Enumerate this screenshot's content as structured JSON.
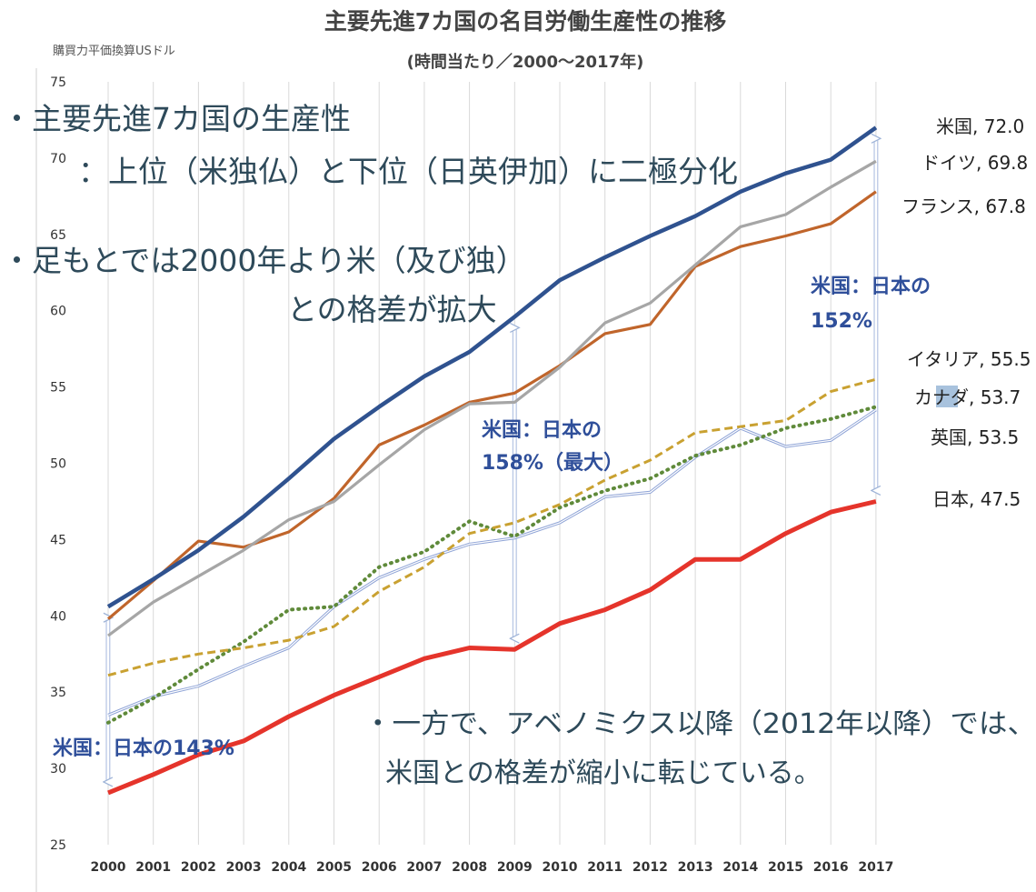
{
  "chart_data": {
    "type": "line",
    "title": "主要先進7カ国の名目労働生産性の推移",
    "subtitle": "(時間当たり／2000〜2017年)",
    "ylabel": "購買力平価換算USドル",
    "xlabel": "",
    "x": [
      "2000",
      "2001",
      "2002",
      "2003",
      "2004",
      "2005",
      "2006",
      "2007",
      "2008",
      "2009",
      "2010",
      "2011",
      "2012",
      "2013",
      "2014",
      "2015",
      "2016",
      "2017"
    ],
    "ylim": [
      25,
      75
    ],
    "yticks": [
      "25",
      "30",
      "35",
      "40",
      "45",
      "50",
      "55",
      "60",
      "65",
      "70",
      "75"
    ],
    "grid": "vertical",
    "series": [
      {
        "name": "米国",
        "end_label": "米国, 72.0",
        "color": "#2f528f",
        "style": "solid",
        "values": [
          40.6,
          42.4,
          44.3,
          46.5,
          49.0,
          51.6,
          53.7,
          55.7,
          57.3,
          59.6,
          62.0,
          63.5,
          64.9,
          66.2,
          67.8,
          69.0,
          69.9,
          72.0
        ]
      },
      {
        "name": "ドイツ",
        "end_label": "ドイツ, 69.8",
        "color": "#a6a6a6",
        "style": "solid",
        "values": [
          38.7,
          40.9,
          42.6,
          44.3,
          46.3,
          47.5,
          49.9,
          52.2,
          53.9,
          54.0,
          56.3,
          59.2,
          60.5,
          63.0,
          65.5,
          66.3,
          68.1,
          69.8
        ]
      },
      {
        "name": "フランス",
        "end_label": "フランス, 67.8",
        "color": "#c0652b",
        "style": "solid",
        "values": [
          39.8,
          42.3,
          44.9,
          44.5,
          45.5,
          47.7,
          51.2,
          52.5,
          54.0,
          54.6,
          56.4,
          58.5,
          59.1,
          62.9,
          64.2,
          64.9,
          65.7,
          67.8
        ]
      },
      {
        "name": "イタリア",
        "end_label": "イタリア, 55.5",
        "color": "#c9a131",
        "style": "dashed",
        "values": [
          36.1,
          36.9,
          37.5,
          37.9,
          38.4,
          39.3,
          41.6,
          43.2,
          45.4,
          46.1,
          47.3,
          48.9,
          50.2,
          52.0,
          52.4,
          52.8,
          54.7,
          55.5
        ]
      },
      {
        "name": "カナダ",
        "end_label": "カナダ, 53.7",
        "color": "#5f8a3a",
        "style": "dotted",
        "values": [
          33.0,
          34.6,
          36.5,
          38.3,
          40.4,
          40.6,
          43.2,
          44.2,
          46.2,
          45.2,
          47.1,
          48.2,
          49.0,
          50.5,
          51.2,
          52.3,
          52.9,
          53.7
        ]
      },
      {
        "name": "英国",
        "end_label": "英国, 53.5",
        "color": "#8ea3d6",
        "style": "solid-double",
        "values": [
          33.5,
          34.7,
          35.4,
          36.7,
          37.9,
          40.6,
          42.5,
          43.7,
          44.7,
          45.1,
          46.1,
          47.8,
          48.1,
          50.4,
          52.3,
          51.1,
          51.5,
          53.5
        ]
      },
      {
        "name": "日本",
        "end_label": "日本, 47.5",
        "color": "#e5342b",
        "style": "solid-thick",
        "values": [
          28.4,
          29.6,
          30.9,
          31.8,
          33.4,
          34.8,
          36.0,
          37.2,
          37.9,
          37.8,
          39.5,
          40.4,
          41.7,
          43.7,
          43.7,
          45.4,
          46.8,
          47.5
        ]
      }
    ],
    "ratio_annotations": [
      {
        "line1": "米国：日本の143%",
        "line2": ""
      },
      {
        "line1": "米国：日本の",
        "line2": "158%（最大）"
      },
      {
        "line1": "米国：日本の",
        "line2": "152%"
      }
    ],
    "text_annotations": [
      "・主要先進7カ国の生産性",
      "：上位（米独仏）と下位（日英伊加）に二極分化",
      "・足もとでは2000年より米（及び独）",
      "との格差が拡大",
      "・一方で、アベノミクス以降（2012年以降）では、",
      "米国との格差が縮小に転じている。"
    ]
  }
}
